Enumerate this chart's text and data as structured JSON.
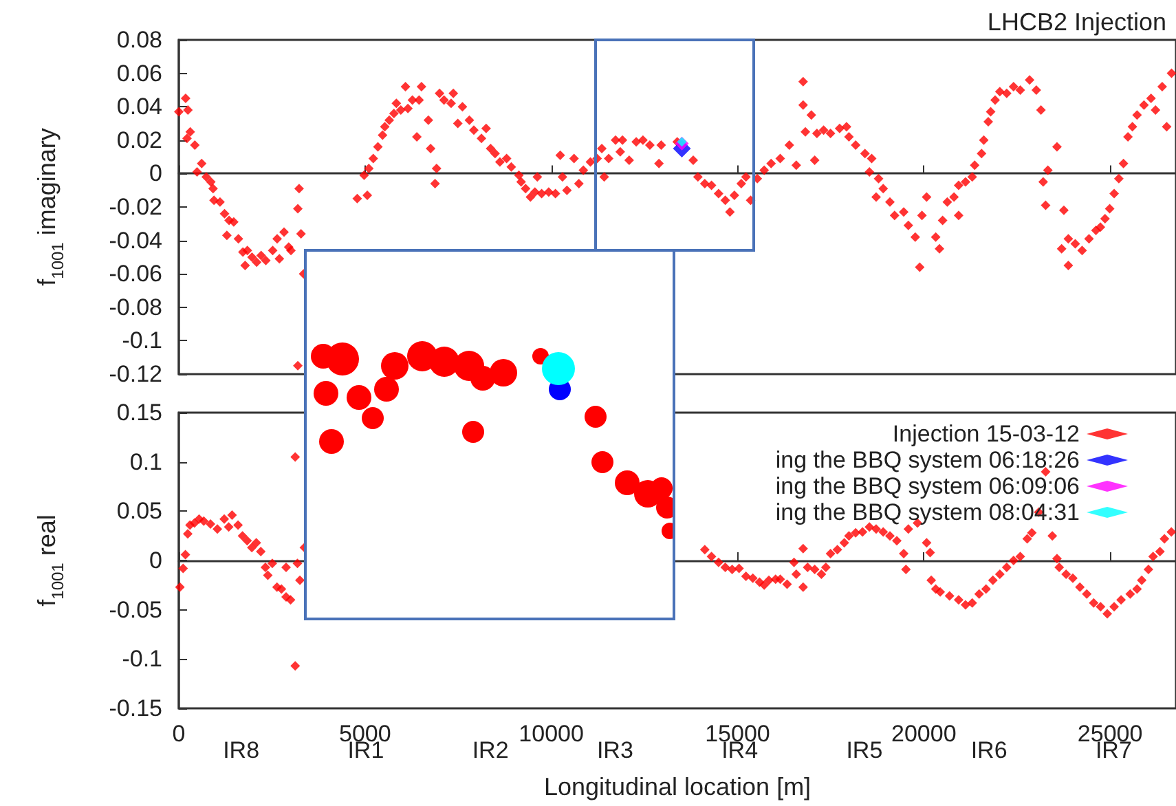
{
  "chart_data": [
    {
      "type": "scatter",
      "title": "LHCB2 Injection",
      "ylabel": "f$_{1001}$ imaginary",
      "xlim": [
        0,
        26770
      ],
      "xticks": [
        0,
        5000,
        10000,
        15000,
        20000,
        25000
      ],
      "ylim": [
        -0.12,
        0.08
      ],
      "yticks": [
        -0.12,
        -0.1,
        -0.08,
        -0.06,
        -0.04,
        -0.02,
        0,
        0.02,
        0.04,
        0.06,
        0.08
      ],
      "tick_labels": "y",
      "marker": "diamond",
      "series": [
        {
          "color": "#ff0000",
          "x": [
            0,
            184,
            245,
            220,
            307,
            430,
            490,
            614,
            737,
            860,
            920,
            945,
            1105,
            1228,
            1350,
            1290,
            1475,
            1600,
            1720,
            1840,
            1965,
            2090,
            1780,
            2210,
            2335,
            2520,
            2640,
            2700,
            2825,
            2950,
            3010,
            3195,
            3230,
            3280,
            3350,
            3195,
            4790,
            5060,
            4975,
            5100,
            5220,
            5345,
            5470,
            5530,
            5650,
            5775,
            5840,
            5960,
            6085,
            6150,
            6270,
            6390,
            6515,
            6450,
            6700,
            6760,
            6920,
            6880,
            7000,
            7120,
            7370,
            7310,
            7490,
            7615,
            7800,
            7920,
            8125,
            8250,
            8370,
            8490,
            8620,
            8800,
            8925,
            9130,
            9190,
            9310,
            9440,
            9560,
            9625,
            9740,
            9930,
            10110,
            10240,
            10300,
            10420,
            10610,
            10740,
            10860,
            11050,
            11230,
            11355,
            11420,
            11540,
            11725,
            11850,
            11910,
            12090,
            12280,
            12460,
            12645,
            12890,
            12950,
            13380,
            13810,
            13935,
            14120,
            14300,
            14490,
            14670,
            14795,
            14915,
            15100,
            15225,
            15350,
            15530,
            15715,
            15900,
            16145,
            16390,
            16575,
            16760,
            16760,
            16820,
            16980,
            17070,
            17130,
            17310,
            17495,
            17740,
            17925,
            17990,
            18170,
            18420,
            18600,
            18540,
            18785,
            18910,
            18720,
            19090,
            19215,
            19460,
            19585,
            19770,
            19890,
            19950,
            20075,
            20320,
            20420,
            20505,
            20630,
            20810,
            20935,
            20935,
            21120,
            21300,
            21365,
            21550,
            21610,
            21730,
            21795,
            21915,
            22040,
            22225,
            22410,
            22590,
            22840,
            23020,
            23145,
            23205,
            23270,
            23330,
            23575,
            23760,
            23700,
            23880,
            23880,
            24065,
            24250,
            24435,
            24620,
            24740,
            24865,
            24990,
            25110,
            25235,
            25360,
            25480,
            25600,
            25725,
            25910,
            26100,
            26220,
            26400,
            26520,
            26650
          ],
          "values": [
            0.037,
            0.045,
            0.038,
            0.021,
            0.025,
            0.017,
            0.001,
            0.006,
            -0.002,
            -0.005,
            -0.009,
            -0.016,
            -0.017,
            -0.024,
            -0.028,
            -0.037,
            -0.029,
            -0.039,
            -0.047,
            -0.046,
            -0.05,
            -0.053,
            -0.055,
            -0.049,
            -0.052,
            -0.046,
            -0.039,
            -0.051,
            -0.035,
            -0.044,
            -0.046,
            -0.021,
            -0.009,
            -0.036,
            -0.06,
            -0.115,
            -0.015,
            -0.013,
            -0.001,
            0.003,
            0.009,
            0.016,
            0.023,
            0.028,
            0.032,
            0.036,
            0.042,
            0.038,
            0.052,
            0.039,
            0.044,
            0.022,
            0.052,
            0.044,
            0.032,
            0.015,
            0.003,
            -0.006,
            0.048,
            0.044,
            0.048,
            0.042,
            0.03,
            0.04,
            0.032,
            0.026,
            0.021,
            0.027,
            0.015,
            0.012,
            0.007,
            0.009,
            0.004,
            -0.001,
            -0.005,
            -0.009,
            -0.014,
            -0.011,
            -0.002,
            -0.012,
            -0.011,
            -0.012,
            0.011,
            -0.002,
            -0.01,
            0.009,
            -0.006,
            0.002,
            0.007,
            0.009,
            0.015,
            -0.002,
            0.009,
            0.02,
            0.013,
            0.02,
            0.008,
            0.019,
            0.02,
            0.017,
            0.006,
            0.017,
            0.019,
            0.008,
            -0.002,
            -0.006,
            -0.007,
            -0.012,
            -0.016,
            -0.023,
            -0.013,
            -0.006,
            -0.002,
            -0.016,
            -0.003,
            0.002,
            0.006,
            0.009,
            0.017,
            0.005,
            0.055,
            0.041,
            0.025,
            0.035,
            0.008,
            0.024,
            0.026,
            0.024,
            0.027,
            0.028,
            0.022,
            0.017,
            0.012,
            0.009,
            0.001,
            -0.003,
            -0.009,
            -0.014,
            -0.017,
            -0.025,
            -0.023,
            -0.031,
            -0.038,
            -0.056,
            -0.025,
            -0.014,
            -0.038,
            -0.045,
            -0.028,
            -0.017,
            -0.014,
            -0.025,
            -0.007,
            -0.005,
            -0.002,
            0.005,
            0.012,
            0.02,
            0.031,
            0.037,
            0.044,
            0.049,
            0.048,
            0.052,
            0.05,
            0.056,
            0.05,
            0.038,
            -0.005,
            -0.019,
            0.002,
            0.016,
            -0.022,
            -0.045,
            -0.055,
            -0.039,
            -0.042,
            -0.046,
            -0.039,
            -0.034,
            -0.032,
            -0.027,
            -0.021,
            -0.012,
            -0.003,
            0.006,
            0.022,
            0.028,
            0.035,
            0.041,
            0.045,
            0.038,
            0.052,
            0.028,
            0.06
          ]
        },
        {
          "color": "#0000ff",
          "x": [
            13505
          ],
          "values": [
            0.015
          ]
        },
        {
          "color": "#ff00ff",
          "x": [
            13505
          ],
          "values": [
            0.018
          ]
        },
        {
          "color": "#00ffff",
          "x": [
            13505
          ],
          "values": [
            0.019
          ]
        }
      ]
    },
    {
      "type": "scatter",
      "xlabel": "Longitudinal location [m]",
      "ylabel": "f$_{1001}$ real",
      "xlim": [
        0,
        26770
      ],
      "xticks": [
        0,
        5000,
        10000,
        15000,
        20000,
        25000
      ],
      "annotations": [
        "IR8",
        "IR1",
        "IR2",
        "IR3",
        "IR4",
        "IR5",
        "IR6",
        "IR7"
      ],
      "ylim": [
        -0.15,
        0.15
      ],
      "yticks": [
        -0.15,
        -0.1,
        -0.05,
        0,
        0.05,
        0.1,
        0.15
      ],
      "marker": "diamond",
      "legend": "top right",
      "series": [
        {
          "name": "Injection 15-03-12",
          "color": "#ff0000",
          "x": [
            30,
            116,
            177,
            240,
            300,
            420,
            545,
            670,
            850,
            1035,
            1220,
            1340,
            1430,
            1590,
            1710,
            1835,
            1960,
            2080,
            2200,
            2325,
            2390,
            2510,
            2635,
            2755,
            2880,
            2880,
            3000,
            3125,
            3185,
            3250,
            3125,
            3370,
            14120,
            14300,
            14490,
            14670,
            14855,
            15040,
            15225,
            15410,
            15590,
            15715,
            15840,
            16020,
            16145,
            16330,
            16515,
            16575,
            16760,
            16760,
            16880,
            17070,
            17250,
            17370,
            17495,
            17680,
            17865,
            17990,
            18170,
            18355,
            18540,
            18720,
            18910,
            19090,
            19275,
            19460,
            19585,
            19520,
            19830,
            20075,
            20170,
            20200,
            20320,
            20440,
            20690,
            20935,
            21120,
            21300,
            21485,
            21670,
            21855,
            22040,
            22225,
            22410,
            22590,
            22775,
            22900,
            23085,
            23270,
            23450,
            23575,
            23635,
            23820,
            24000,
            24190,
            24375,
            24560,
            24745,
            24925,
            25110,
            25295,
            25540,
            25725,
            25850,
            26030,
            26155,
            26340,
            26460,
            26645
          ],
          "values": [
            -0.027,
            -0.008,
            0.006,
            0.027,
            0.036,
            0.038,
            0.042,
            0.04,
            0.037,
            0.032,
            0.042,
            0.034,
            0.046,
            0.036,
            0.025,
            0.02,
            0.013,
            0.018,
            0.009,
            -0.007,
            -0.015,
            -0.003,
            -0.027,
            -0.029,
            -0.007,
            -0.037,
            -0.04,
            0.105,
            -0.003,
            -0.02,
            -0.107,
            0.013,
            0.011,
            0.004,
            -0.002,
            -0.007,
            -0.009,
            -0.008,
            -0.016,
            -0.018,
            -0.022,
            -0.025,
            -0.02,
            -0.019,
            -0.019,
            -0.024,
            -0.002,
            -0.014,
            0.012,
            -0.027,
            -0.007,
            -0.009,
            -0.014,
            -0.007,
            0.007,
            0.011,
            0.018,
            0.025,
            0.028,
            0.029,
            0.034,
            0.032,
            0.029,
            0.025,
            0.02,
            0.007,
            0.032,
            -0.009,
            0.038,
            0.018,
            0.008,
            -0.02,
            -0.029,
            -0.032,
            -0.036,
            -0.04,
            -0.045,
            -0.043,
            -0.034,
            -0.029,
            -0.02,
            -0.014,
            -0.007,
            0,
            0.004,
            0.022,
            0.028,
            0.049,
            0.09,
            0.025,
            0.002,
            -0.007,
            -0.014,
            -0.018,
            -0.027,
            -0.034,
            -0.043,
            -0.047,
            -0.054,
            -0.047,
            -0.04,
            -0.034,
            -0.029,
            -0.02,
            -0.009,
            0.004,
            0.009,
            0.022,
            0.029
          ]
        },
        {
          "name": "ing the BBQ system 06:18:26",
          "color": "#0000ff"
        },
        {
          "name": "ing the BBQ system 06:09:06",
          "color": "#ff00ff"
        },
        {
          "name": "ing the BBQ system 08:04:31",
          "color": "#00ffff"
        }
      ]
    }
  ]
}
